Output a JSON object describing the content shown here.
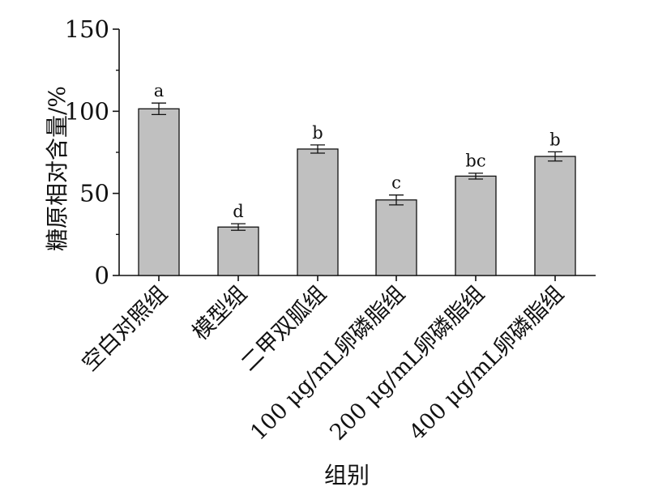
{
  "chart_data": {
    "type": "bar",
    "title": "",
    "xlabel": "组别",
    "ylabel": "糖原相对含量/%",
    "ylim": [
      0,
      150
    ],
    "yticks": [
      0,
      50,
      100,
      150
    ],
    "grid": false,
    "bar_color": "#c0c0c0",
    "categories": [
      "空白对照组",
      "模型组",
      "二甲双胍组",
      "100 μg/mL卵磷脂组",
      "200 μg/mL卵磷脂组",
      "400 μg/mL卵磷脂组"
    ],
    "values": [
      101.5,
      29.5,
      77,
      46,
      60.5,
      72.5
    ],
    "errors": [
      3.5,
      2,
      2.5,
      3,
      1.8,
      2.8
    ],
    "significance": [
      "a",
      "d",
      "b",
      "c",
      "bc",
      "b"
    ]
  }
}
